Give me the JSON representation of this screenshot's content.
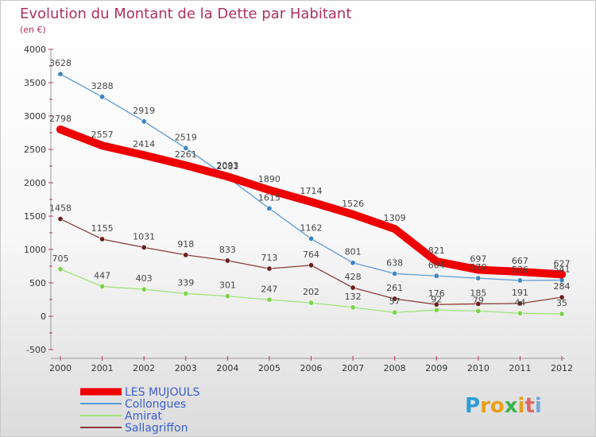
{
  "chart_data": {
    "type": "line",
    "title": "Evolution du Montant de la Dette par Habitant",
    "subtitle": "(en €)",
    "x": [
      "2000",
      "2001",
      "2002",
      "2003",
      "2004",
      "2005",
      "2006",
      "2007",
      "2008",
      "2009",
      "2010",
      "2011",
      "2012"
    ],
    "ylim": [
      -500,
      4000
    ],
    "yticks": [
      -500,
      0,
      500,
      1000,
      1500,
      2000,
      2500,
      3000,
      3500,
      4000
    ],
    "grid": false,
    "legend_position": "bottom-left",
    "series": [
      {
        "name": "Collongues",
        "color": "#5b9bd5",
        "marker": "#3d85c6",
        "values": [
          3628,
          3288,
          2919,
          2519,
          2081,
          1615,
          1162,
          801,
          638,
          604,
          570,
          536,
          541
        ],
        "labels": [
          "3628",
          "3288",
          "2919",
          "2519",
          "2081",
          "1615",
          "1162",
          "801",
          "638",
          "604",
          "570",
          "536",
          "541"
        ]
      },
      {
        "name": "Amirat",
        "color": "#9fe37a",
        "marker": "#7cd44a",
        "values": [
          705,
          447,
          403,
          339,
          301,
          247,
          202,
          132,
          57,
          92,
          79,
          44,
          35
        ],
        "labels": [
          "705",
          "447",
          "403",
          "339",
          "301",
          "247",
          "202",
          "132",
          "57",
          "92",
          "79",
          "44",
          "35"
        ]
      },
      {
        "name": "Sallagriffon",
        "color": "#8c3a3a",
        "marker": "#6b1f1f",
        "values": [
          1458,
          1155,
          1031,
          918,
          833,
          713,
          764,
          428,
          261,
          176,
          185,
          191,
          284
        ],
        "labels": [
          "1458",
          "1155",
          "1031",
          "918",
          "833",
          "713",
          "764",
          "428",
          "261",
          "176",
          "185",
          "191",
          "284"
        ]
      },
      {
        "name": "LES MUJOULS",
        "color": "#ee0000",
        "marker": "#ee0000",
        "thick": true,
        "values": [
          2798,
          2557,
          2414,
          2261,
          2093,
          1890,
          1714,
          1526,
          1309,
          821,
          697,
          667,
          627
        ],
        "labels": [
          "2798",
          "2557",
          "2414",
          "2261",
          "2093",
          "1890",
          "1714",
          "1526",
          "1309",
          "821",
          "697",
          "667",
          "627"
        ]
      }
    ]
  },
  "legend": [
    {
      "name": "LES MUJOULS",
      "color": "#ee0000",
      "text_color": "#3a5fcd",
      "thick": true
    },
    {
      "name": "Collongues",
      "color": "#5b9bd5",
      "text_color": "#3a5fcd"
    },
    {
      "name": "Amirat",
      "color": "#9fe37a",
      "text_color": "#3a5fcd"
    },
    {
      "name": "Sallagriffon",
      "color": "#8c3a3a",
      "text_color": "#3a5fcd"
    }
  ],
  "brand": {
    "letters": [
      "P",
      "r",
      "o",
      "x",
      "i",
      "t",
      "i"
    ],
    "colors": [
      "#2e9bd6",
      "#e8a019",
      "#e8a019",
      "#3cb44b",
      "#e8a019",
      "#e06666",
      "#6fa8dc"
    ]
  }
}
